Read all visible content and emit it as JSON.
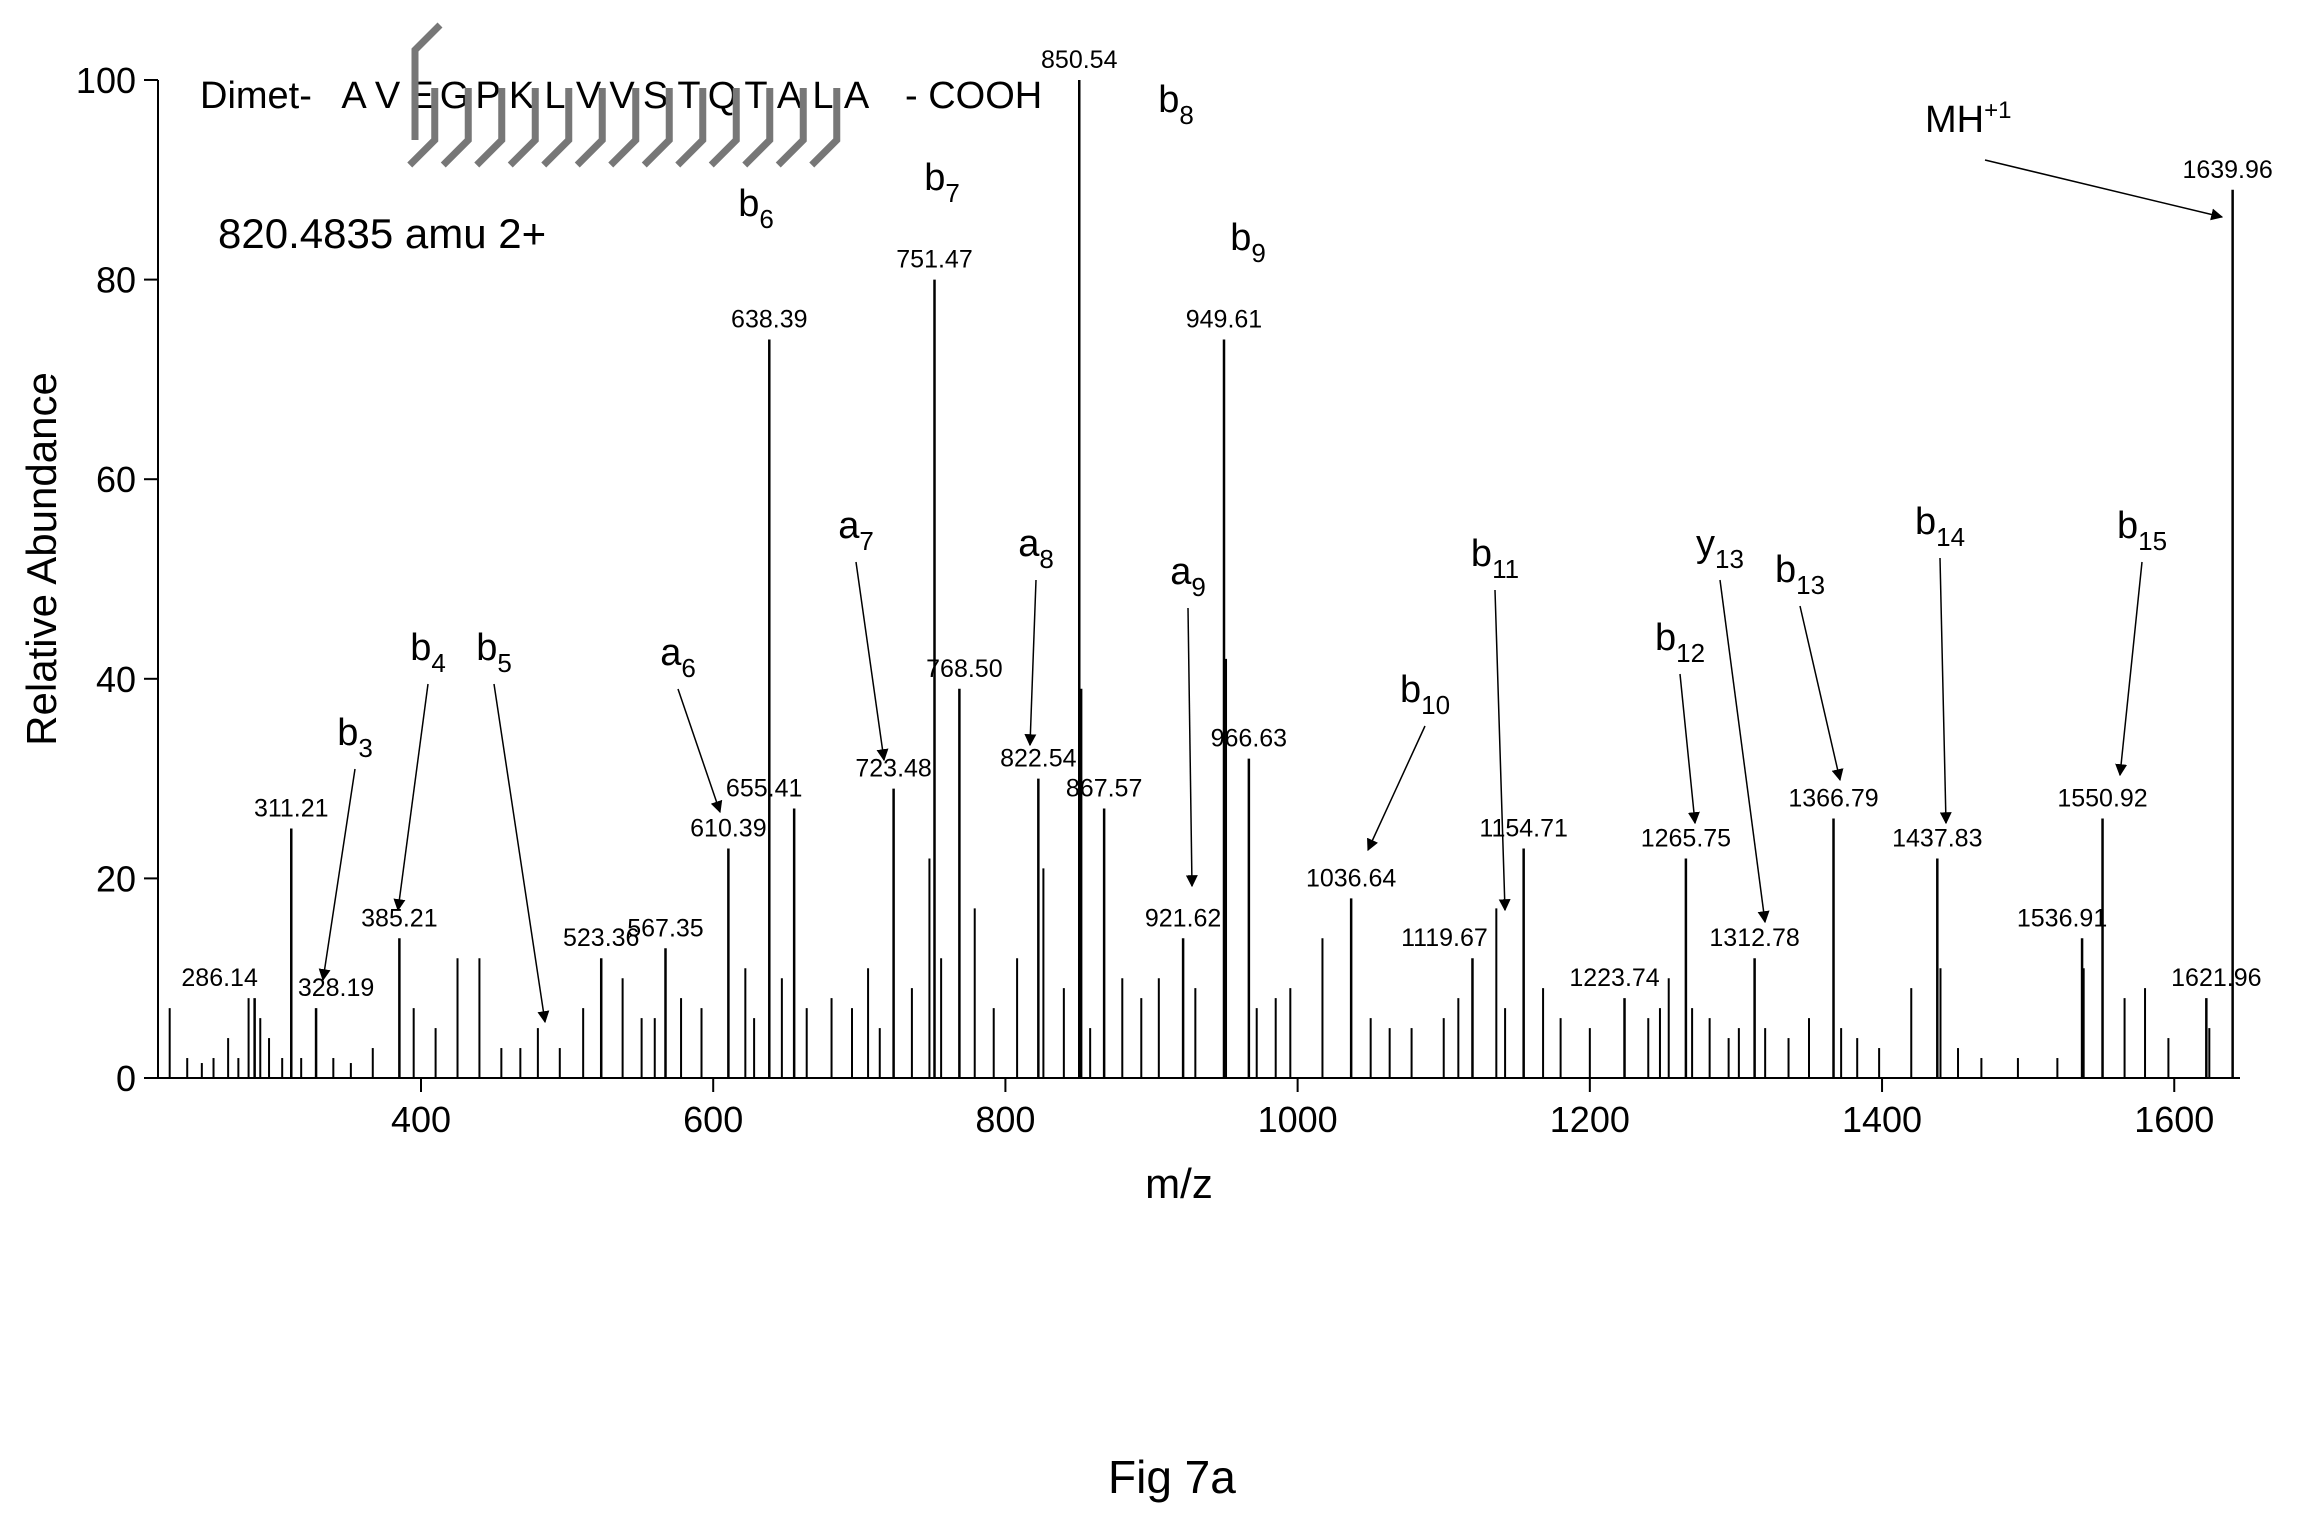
{
  "chart_data": {
    "type": "bar",
    "xlabel": "m/z",
    "ylabel": "Relative Abundance",
    "xlim": [
      220,
      1645
    ],
    "ylim": [
      0,
      100
    ],
    "xticks": [
      400,
      600,
      800,
      1000,
      1200,
      1400,
      1600
    ],
    "yticks": [
      0,
      20,
      40,
      60,
      80,
      100
    ],
    "sequence": {
      "prefix": "Dimet-",
      "residues": [
        "A",
        "V",
        "E",
        "G",
        "P",
        "K",
        "L",
        "V",
        "V",
        "S",
        "T",
        "Q",
        "T",
        "A",
        "L",
        "A"
      ],
      "suffix": "- COOH"
    },
    "precursor": "820.4835 amu 2+",
    "labeled_peaks": [
      {
        "mz": 286.14,
        "y": 8,
        "label": "286.14"
      },
      {
        "mz": 311.21,
        "y": 25,
        "label": "311.21"
      },
      {
        "mz": 328.19,
        "y": 7,
        "label": "328.19"
      },
      {
        "mz": 385.21,
        "y": 14,
        "label": "385.21"
      },
      {
        "mz": 523.36,
        "y": 12,
        "label": "523.36"
      },
      {
        "mz": 567.35,
        "y": 13,
        "label": "567.35"
      },
      {
        "mz": 610.39,
        "y": 23,
        "label": "610.39"
      },
      {
        "mz": 638.39,
        "y": 74,
        "label": "638.39"
      },
      {
        "mz": 655.41,
        "y": 27,
        "label": "655.41"
      },
      {
        "mz": 723.48,
        "y": 29,
        "label": "723.48"
      },
      {
        "mz": 751.47,
        "y": 80,
        "label": "751.47"
      },
      {
        "mz": 768.5,
        "y": 39,
        "label": "768.50"
      },
      {
        "mz": 822.54,
        "y": 30,
        "label": "822.54"
      },
      {
        "mz": 850.54,
        "y": 100,
        "label": "850.54"
      },
      {
        "mz": 867.57,
        "y": 27,
        "label": "867.57"
      },
      {
        "mz": 921.62,
        "y": 14,
        "label": "921.62"
      },
      {
        "mz": 949.61,
        "y": 74,
        "label": "949.61"
      },
      {
        "mz": 966.63,
        "y": 32,
        "label": "966.63"
      },
      {
        "mz": 1036.64,
        "y": 18,
        "label": "1036.64"
      },
      {
        "mz": 1119.67,
        "y": 12,
        "label": "1119.67"
      },
      {
        "mz": 1154.71,
        "y": 23,
        "label": "1154.71"
      },
      {
        "mz": 1223.74,
        "y": 8,
        "label": "1223.74"
      },
      {
        "mz": 1265.75,
        "y": 22,
        "label": "1265.75"
      },
      {
        "mz": 1312.78,
        "y": 12,
        "label": "1312.78"
      },
      {
        "mz": 1366.79,
        "y": 26,
        "label": "1366.79"
      },
      {
        "mz": 1437.83,
        "y": 22,
        "label": "1437.83"
      },
      {
        "mz": 1536.91,
        "y": 14,
        "label": "1536.91"
      },
      {
        "mz": 1550.92,
        "y": 26,
        "label": "1550.92"
      },
      {
        "mz": 1621.96,
        "y": 8,
        "label": "1621.96"
      },
      {
        "mz": 1639.96,
        "y": 89,
        "label": "1639.96"
      }
    ],
    "minor_peaks": [
      {
        "mz": 228,
        "y": 7
      },
      {
        "mz": 240,
        "y": 2
      },
      {
        "mz": 250,
        "y": 1.5
      },
      {
        "mz": 258,
        "y": 2
      },
      {
        "mz": 268,
        "y": 4
      },
      {
        "mz": 275,
        "y": 2
      },
      {
        "mz": 282,
        "y": 8
      },
      {
        "mz": 290,
        "y": 6
      },
      {
        "mz": 296,
        "y": 4
      },
      {
        "mz": 305,
        "y": 2
      },
      {
        "mz": 318,
        "y": 2
      },
      {
        "mz": 340,
        "y": 2
      },
      {
        "mz": 352,
        "y": 1.5
      },
      {
        "mz": 367,
        "y": 3
      },
      {
        "mz": 395,
        "y": 7
      },
      {
        "mz": 410,
        "y": 5
      },
      {
        "mz": 425,
        "y": 12
      },
      {
        "mz": 440,
        "y": 12
      },
      {
        "mz": 455,
        "y": 3
      },
      {
        "mz": 468,
        "y": 3
      },
      {
        "mz": 480,
        "y": 5
      },
      {
        "mz": 495,
        "y": 3
      },
      {
        "mz": 511,
        "y": 7
      },
      {
        "mz": 538,
        "y": 10
      },
      {
        "mz": 551,
        "y": 6
      },
      {
        "mz": 560,
        "y": 6
      },
      {
        "mz": 578,
        "y": 8
      },
      {
        "mz": 592,
        "y": 7
      },
      {
        "mz": 622,
        "y": 11
      },
      {
        "mz": 628,
        "y": 6
      },
      {
        "mz": 647,
        "y": 10
      },
      {
        "mz": 664,
        "y": 7
      },
      {
        "mz": 681,
        "y": 8
      },
      {
        "mz": 695,
        "y": 7
      },
      {
        "mz": 706,
        "y": 11
      },
      {
        "mz": 714,
        "y": 5
      },
      {
        "mz": 736,
        "y": 9
      },
      {
        "mz": 748,
        "y": 22
      },
      {
        "mz": 756,
        "y": 12
      },
      {
        "mz": 779,
        "y": 17
      },
      {
        "mz": 792,
        "y": 7
      },
      {
        "mz": 808,
        "y": 12
      },
      {
        "mz": 826,
        "y": 21
      },
      {
        "mz": 840,
        "y": 9
      },
      {
        "mz": 852,
        "y": 39
      },
      {
        "mz": 858,
        "y": 5
      },
      {
        "mz": 880,
        "y": 10
      },
      {
        "mz": 893,
        "y": 8
      },
      {
        "mz": 905,
        "y": 10
      },
      {
        "mz": 930,
        "y": 9
      },
      {
        "mz": 951,
        "y": 42
      },
      {
        "mz": 972,
        "y": 7
      },
      {
        "mz": 985,
        "y": 8
      },
      {
        "mz": 995,
        "y": 9
      },
      {
        "mz": 1017,
        "y": 14
      },
      {
        "mz": 1050,
        "y": 6
      },
      {
        "mz": 1063,
        "y": 5
      },
      {
        "mz": 1078,
        "y": 5
      },
      {
        "mz": 1100,
        "y": 6
      },
      {
        "mz": 1110,
        "y": 8
      },
      {
        "mz": 1136,
        "y": 17
      },
      {
        "mz": 1142,
        "y": 7
      },
      {
        "mz": 1168,
        "y": 9
      },
      {
        "mz": 1180,
        "y": 6
      },
      {
        "mz": 1200,
        "y": 5
      },
      {
        "mz": 1240,
        "y": 6
      },
      {
        "mz": 1248,
        "y": 7
      },
      {
        "mz": 1254,
        "y": 10
      },
      {
        "mz": 1270,
        "y": 7
      },
      {
        "mz": 1282,
        "y": 6
      },
      {
        "mz": 1295,
        "y": 4
      },
      {
        "mz": 1302,
        "y": 5
      },
      {
        "mz": 1320,
        "y": 5
      },
      {
        "mz": 1336,
        "y": 4
      },
      {
        "mz": 1350,
        "y": 6
      },
      {
        "mz": 1372,
        "y": 5
      },
      {
        "mz": 1383,
        "y": 4
      },
      {
        "mz": 1398,
        "y": 3
      },
      {
        "mz": 1420,
        "y": 9
      },
      {
        "mz": 1440,
        "y": 11
      },
      {
        "mz": 1452,
        "y": 3
      },
      {
        "mz": 1468,
        "y": 2
      },
      {
        "mz": 1493,
        "y": 2
      },
      {
        "mz": 1520,
        "y": 2
      },
      {
        "mz": 1538,
        "y": 11
      },
      {
        "mz": 1566,
        "y": 8
      },
      {
        "mz": 1580,
        "y": 9
      },
      {
        "mz": 1596,
        "y": 4
      },
      {
        "mz": 1624,
        "y": 5
      }
    ],
    "ion_annotations": [
      {
        "ion": "b",
        "sub": "3"
      },
      {
        "ion": "b",
        "sub": "4"
      },
      {
        "ion": "b",
        "sub": "5"
      },
      {
        "ion": "a",
        "sub": "6"
      },
      {
        "ion": "b",
        "sub": "6"
      },
      {
        "ion": "a",
        "sub": "7"
      },
      {
        "ion": "b",
        "sub": "7"
      },
      {
        "ion": "a",
        "sub": "8"
      },
      {
        "ion": "b",
        "sub": "8"
      },
      {
        "ion": "a",
        "sub": "9"
      },
      {
        "ion": "b",
        "sub": "9"
      },
      {
        "ion": "b",
        "sub": "10"
      },
      {
        "ion": "b",
        "sub": "11"
      },
      {
        "ion": "b",
        "sub": "12"
      },
      {
        "ion": "y",
        "sub": "13"
      },
      {
        "ion": "b",
        "sub": "13"
      },
      {
        "ion": "b",
        "sub": "14"
      },
      {
        "ion": "b",
        "sub": "15"
      }
    ],
    "mh_label": {
      "text": "MH",
      "sup": "+1"
    }
  },
  "caption": "Fig 7a"
}
